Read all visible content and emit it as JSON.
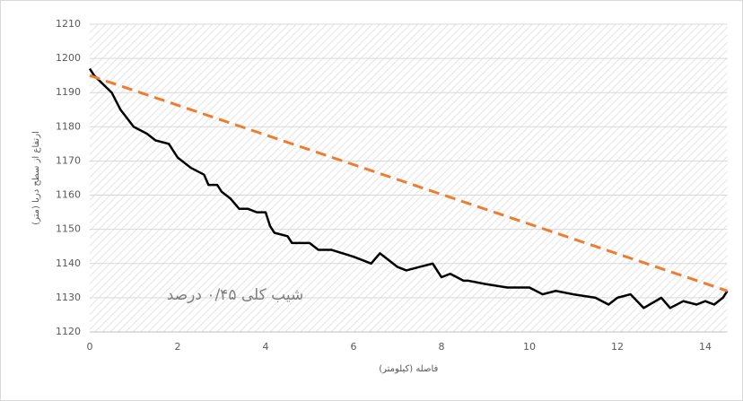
{
  "chart_data": {
    "type": "line",
    "y_label": "ارتفاع از سطح دریا (متر)",
    "x_label": "فاصله (کیلومتر)",
    "annotation": "شیب کلی ۰/۴۵ درصد",
    "xlim": [
      0,
      14.5
    ],
    "xticks": [
      0,
      2,
      4,
      6,
      8,
      10,
      12,
      14
    ],
    "ylim": [
      1120,
      1210
    ],
    "yticks": [
      1120,
      1130,
      1140,
      1150,
      1160,
      1170,
      1180,
      1190,
      1200,
      1210
    ],
    "grid": true,
    "series": [
      {
        "color": "#000000",
        "dash": false,
        "x": [
          0,
          0.1,
          0.5,
          0.7,
          1,
          1.3,
          1.5,
          1.8,
          2,
          2.3,
          2.6,
          2.7,
          2.9,
          3,
          3.2,
          3.4,
          3.6,
          3.8,
          4,
          4.1,
          4.2,
          4.5,
          4.6,
          5,
          5.2,
          5.5,
          6,
          6.2,
          6.4,
          6.6,
          6.8,
          7,
          7.2,
          7.5,
          7.8,
          8,
          8.2,
          8.5,
          8.6,
          9,
          9.5,
          10,
          10.3,
          10.6,
          11,
          11.5,
          11.8,
          12,
          12.3,
          12.6,
          13,
          13.2,
          13.5,
          13.8,
          14,
          14.2,
          14.4,
          14.5
        ],
        "values": [
          1197,
          1195,
          1190,
          1185,
          1180,
          1178,
          1176,
          1175,
          1171,
          1168,
          1166,
          1163,
          1163,
          1161,
          1159,
          1156,
          1156,
          1155,
          1155,
          1151,
          1149,
          1148,
          1146,
          1146,
          1144,
          1144,
          1142,
          1141,
          1140,
          1143,
          1141,
          1139,
          1138,
          1139,
          1140,
          1136,
          1137,
          1135,
          1135,
          1134,
          1133,
          1133,
          1131,
          1132,
          1131,
          1130,
          1128,
          1130,
          1131,
          1127,
          1130,
          1127,
          1129,
          1128,
          1129,
          1128,
          1130,
          1132
        ]
      },
      {
        "color": "#ed7d31",
        "dash": true,
        "x": [
          0,
          14.5
        ],
        "values": [
          1195,
          1132
        ]
      }
    ]
  }
}
